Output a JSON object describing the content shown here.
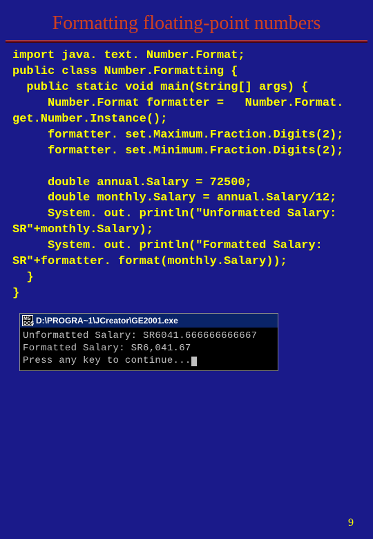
{
  "slide": {
    "title": "Formatting floating-point numbers",
    "background_color": "#1a1a8a",
    "title_color": "#d04020",
    "title_fontsize": 28,
    "divider_color": "#7a1020",
    "code_color": "#ffff00",
    "code_fontsize": 17,
    "code_font": "Courier New",
    "page_number": "9",
    "code": "import java. text. Number.Format;\npublic class Number.Formatting {\n  public static void main(String[] args) {\n     Number.Format formatter =   Number.Format. get.Number.Instance();\n     formatter. set.Maximum.Fraction.Digits(2);\n     formatter. set.Minimum.Fraction.Digits(2);\n\n     double annual.Salary = 72500;\n     double monthly.Salary = annual.Salary/12;\n     System. out. println(\"Unformatted Salary: SR\"+monthly.Salary);\n     System. out. println(\"Formatted Salary: SR\"+formatter. format(monthly.Salary));\n  }\n}"
  },
  "console": {
    "titlebar_color": "#0a2468",
    "title_text": "D:\\PROGRA~1\\JCreator\\GE2001.exe",
    "body_bg": "#000000",
    "body_fg": "#c0c0c0",
    "icon_label": "MS\nDOS",
    "lines": [
      "Unformatted Salary: SR6041.666666666667",
      "Formatted Salary: SR6,041.67",
      "Press any key to continue..."
    ]
  }
}
